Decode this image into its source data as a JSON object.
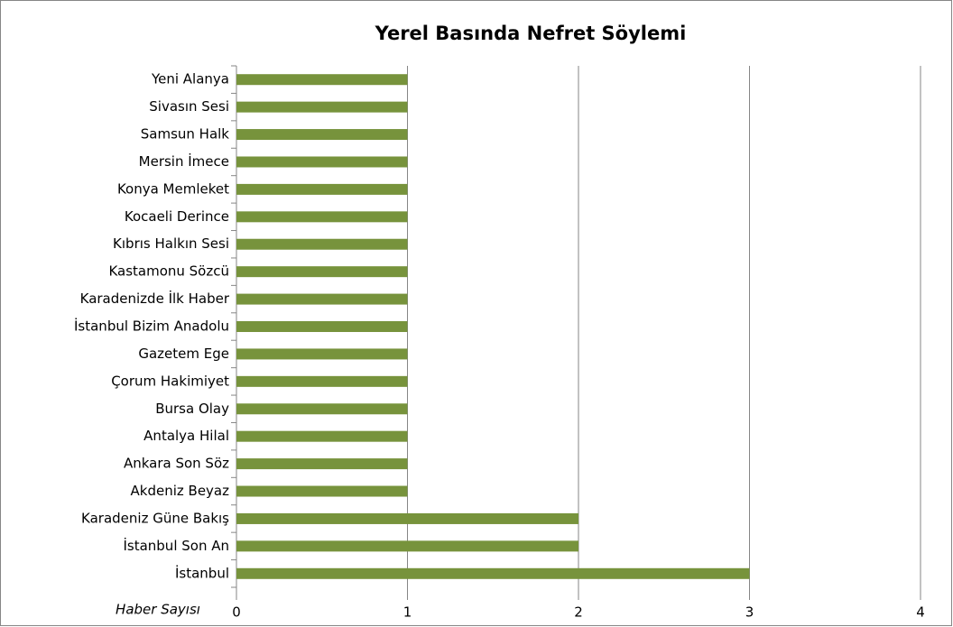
{
  "chart_data": {
    "type": "barh",
    "title": "Yerel Basında Nefret Söylemi",
    "x_label": "Haber Sayısı",
    "categories": [
      "Yeni Alanya",
      "Sivasın Sesi",
      "Samsun Halk",
      "Mersin İmece",
      "Konya Memleket",
      "Kocaeli Derince",
      "Kıbrıs Halkın Sesi",
      "Kastamonu Sözcü",
      "Karadenizde İlk Haber",
      "İstanbul Bizim Anadolu",
      "Gazetem Ege",
      "Çorum Hakimiyet",
      "Bursa Olay",
      "Antalya Hilal",
      "Ankara Son Söz",
      "Akdeniz Beyaz",
      "Karadeniz Güne Bakış",
      "İstanbul Son An",
      "İstanbul"
    ],
    "values": [
      1,
      1,
      1,
      1,
      1,
      1,
      1,
      1,
      1,
      1,
      1,
      1,
      1,
      1,
      1,
      1,
      2,
      2,
      3
    ],
    "color": "#77933c",
    "xlim": [
      0,
      4
    ],
    "xticks": [
      0,
      1,
      2,
      3,
      4
    ],
    "grid": true
  }
}
